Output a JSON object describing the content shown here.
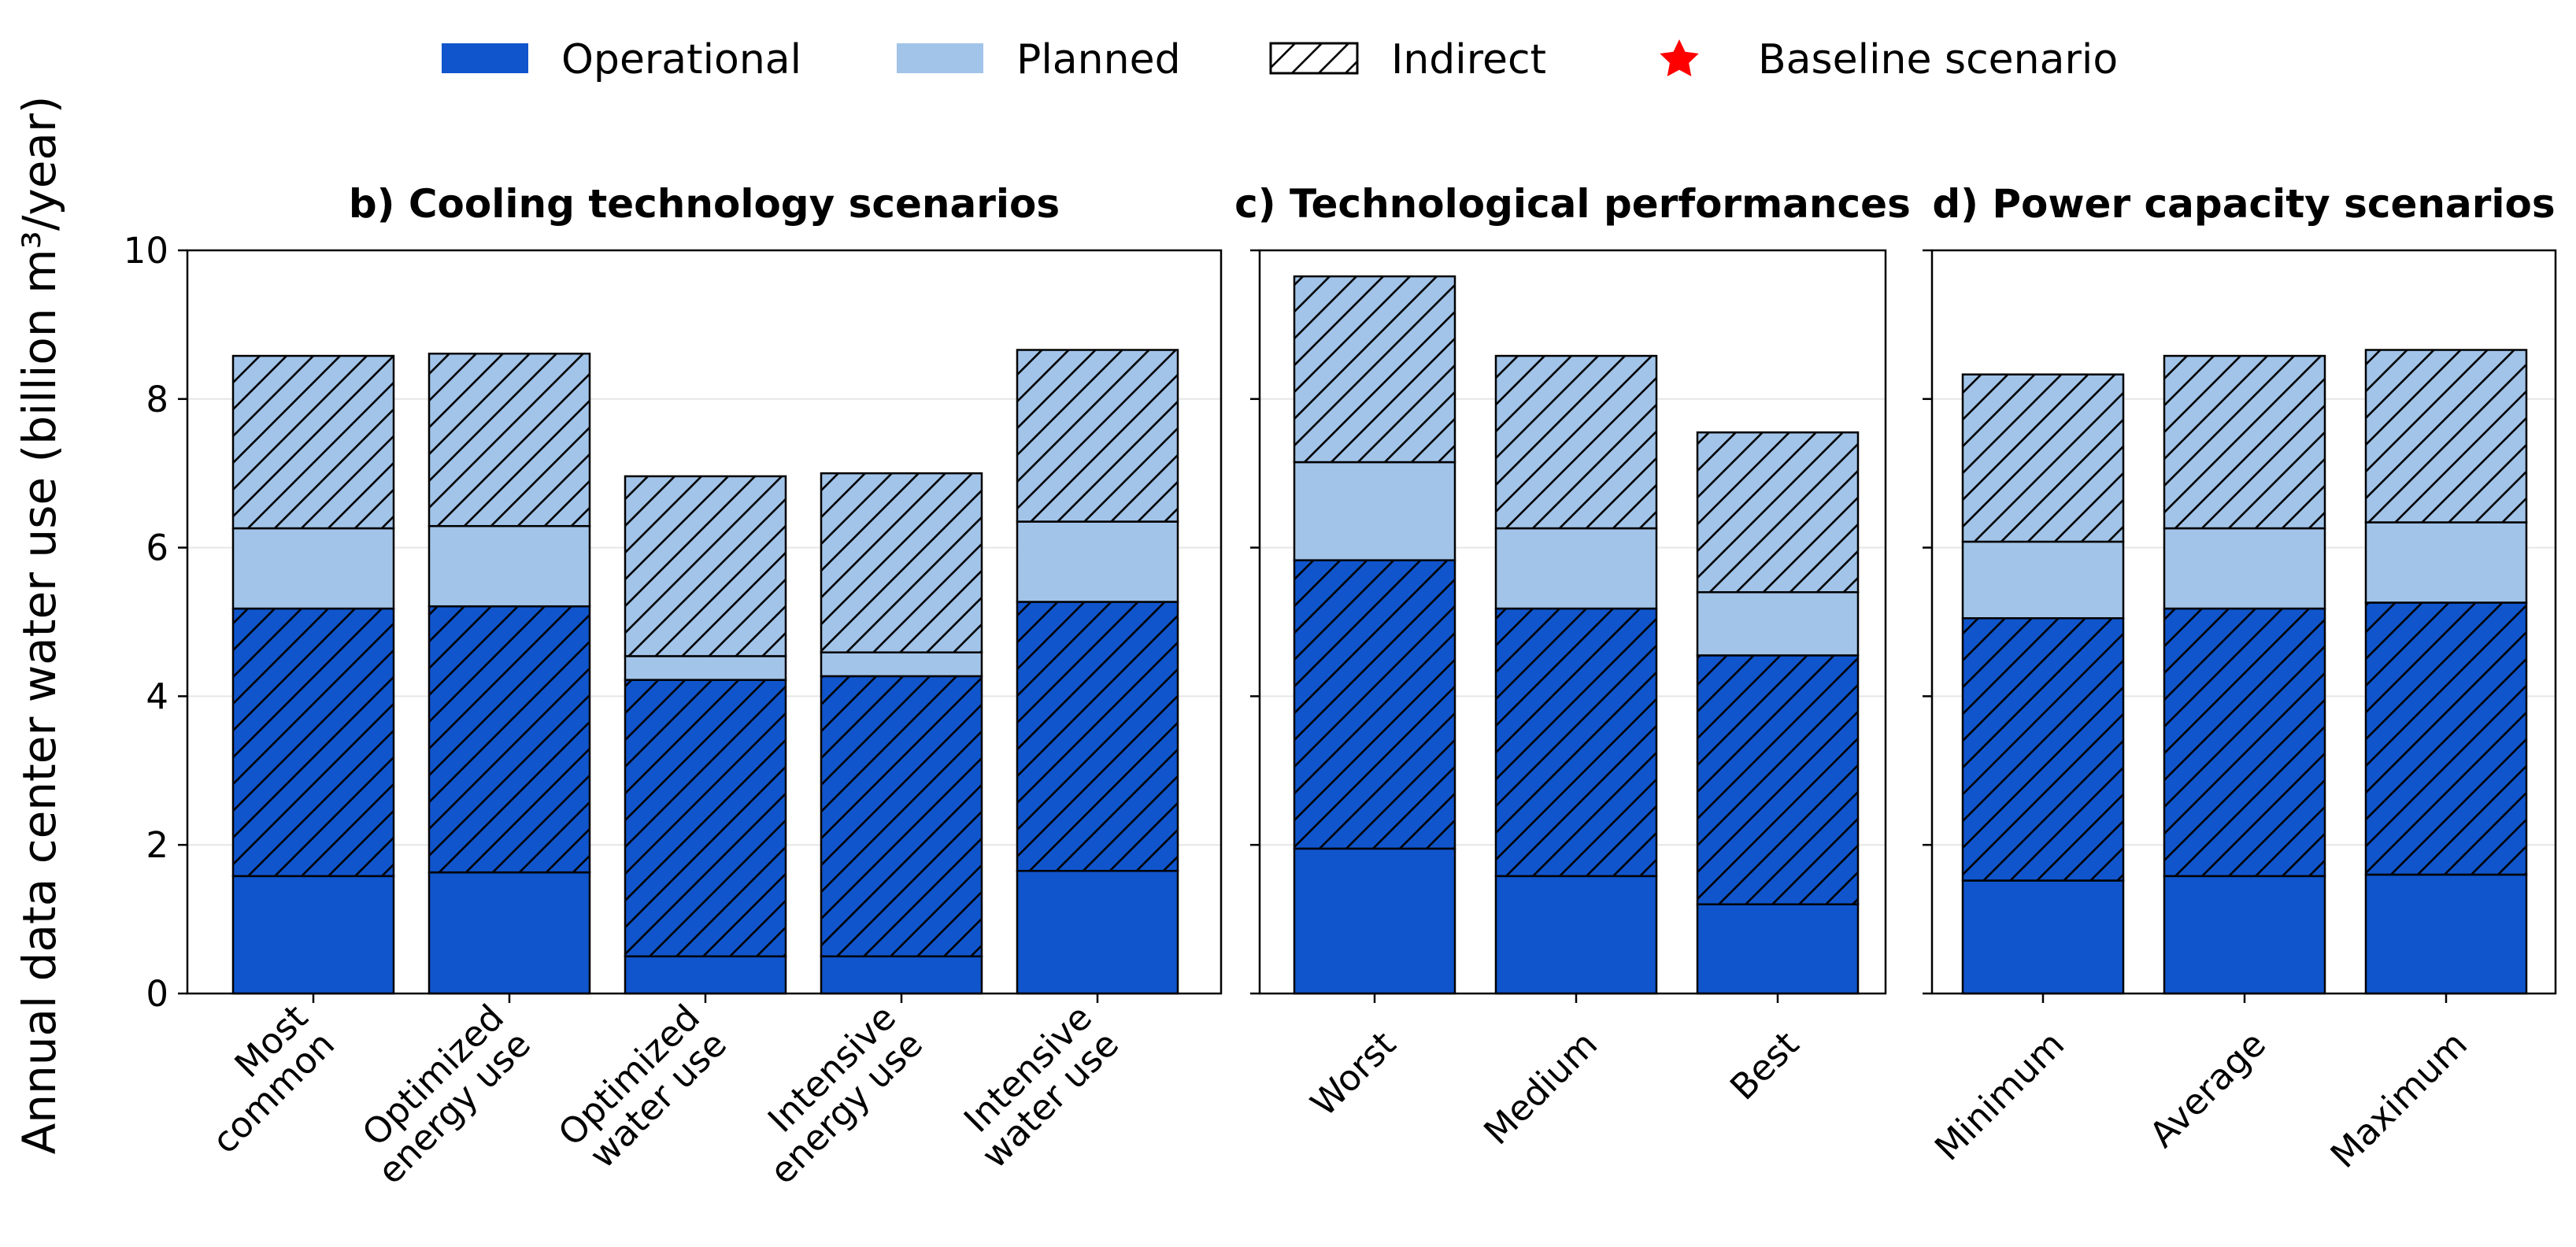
{
  "legend": {
    "operational": "Operational",
    "planned": "Planned",
    "indirect": "Indirect",
    "baseline": "Baseline scenario"
  },
  "colors": {
    "operational": "#1055cc",
    "planned": "#a2c4e9",
    "baseline_marker": "#ff0000",
    "edge": "#000000"
  },
  "y_axis": {
    "label": "Annual data center water use (billion m³/year)",
    "ticks": [
      "0",
      "2",
      "4",
      "6",
      "8",
      "10"
    ]
  },
  "chart_data": [
    {
      "type": "bar",
      "stacked": true,
      "title": "b) Cooling technology scenarios",
      "categories": [
        [
          "Most",
          "common"
        ],
        [
          "Optimized",
          "energy use"
        ],
        [
          "Optimized",
          "water use"
        ],
        [
          "Intensive",
          "energy use"
        ],
        [
          "Intensive",
          "water use"
        ]
      ],
      "series": [
        {
          "name": "Operational",
          "values": [
            1.58,
            1.63,
            0.5,
            0.5,
            1.65
          ]
        },
        {
          "name": "Operational (indirect)",
          "values": [
            3.6,
            3.58,
            3.72,
            3.77,
            3.62
          ]
        },
        {
          "name": "Planned",
          "values": [
            1.08,
            1.08,
            0.32,
            0.32,
            1.08
          ]
        },
        {
          "name": "Planned (indirect)",
          "values": [
            2.32,
            2.32,
            2.42,
            2.41,
            2.31
          ]
        }
      ],
      "ylim": [
        0,
        10
      ],
      "ylabel": "Annual data center water use (billion m³/year)"
    },
    {
      "type": "bar",
      "stacked": true,
      "title": "c) Technological performances",
      "categories": [
        [
          "Worst"
        ],
        [
          "Medium"
        ],
        [
          "Best"
        ]
      ],
      "series": [
        {
          "name": "Operational",
          "values": [
            1.95,
            1.58,
            1.2
          ]
        },
        {
          "name": "Operational (indirect)",
          "values": [
            3.88,
            3.6,
            3.35
          ]
        },
        {
          "name": "Planned",
          "values": [
            1.32,
            1.08,
            0.85
          ]
        },
        {
          "name": "Planned (indirect)",
          "values": [
            2.5,
            2.32,
            2.15
          ]
        }
      ],
      "ylim": [
        0,
        10
      ]
    },
    {
      "type": "bar",
      "stacked": true,
      "title": "d) Power capacity scenarios",
      "categories": [
        [
          "Minimum"
        ],
        [
          "Average"
        ],
        [
          "Maximum"
        ]
      ],
      "series": [
        {
          "name": "Operational",
          "values": [
            1.52,
            1.58,
            1.6
          ]
        },
        {
          "name": "Operational (indirect)",
          "values": [
            3.53,
            3.6,
            3.66
          ]
        },
        {
          "name": "Planned",
          "values": [
            1.03,
            1.08,
            1.08
          ]
        },
        {
          "name": "Planned (indirect)",
          "values": [
            2.25,
            2.32,
            2.32
          ]
        }
      ],
      "ylim": [
        0,
        10
      ]
    }
  ]
}
